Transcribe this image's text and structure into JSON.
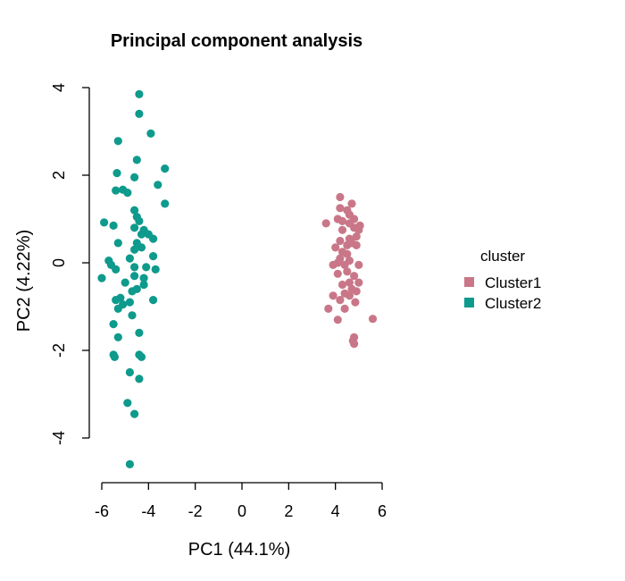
{
  "chart_data": {
    "type": "scatter",
    "title": "Principal component analysis",
    "xlabel": "PC1 (44.1%)",
    "ylabel": "PC2 (4.22%)",
    "xlim": [
      -6,
      6
    ],
    "ylim": [
      -4,
      4
    ],
    "xticks": [
      "-6",
      "-4",
      "-2",
      "0",
      "2",
      "4",
      "6"
    ],
    "yticks": [
      "-4",
      "-2",
      "0",
      "2",
      "4"
    ],
    "grid": false,
    "legend": {
      "title": "cluster",
      "position": "right",
      "entries": [
        {
          "label": "Cluster1",
          "color": "#c97788"
        },
        {
          "label": "Cluster2",
          "color": "#0e9a8c"
        }
      ]
    },
    "series": [
      {
        "name": "Cluster1",
        "color": "#c97788",
        "points": [
          [
            4.2,
            1.5
          ],
          [
            4.7,
            1.35
          ],
          [
            4.2,
            1.25
          ],
          [
            4.5,
            1.2
          ],
          [
            4.6,
            1.1
          ],
          [
            4.1,
            1.0
          ],
          [
            4.3,
            0.95
          ],
          [
            4.8,
            1.0
          ],
          [
            3.6,
            0.9
          ],
          [
            4.6,
            0.9
          ],
          [
            5.05,
            0.85
          ],
          [
            4.3,
            0.75
          ],
          [
            4.8,
            0.8
          ],
          [
            5.0,
            0.75
          ],
          [
            4.9,
            0.6
          ],
          [
            4.6,
            0.55
          ],
          [
            4.2,
            0.5
          ],
          [
            4.0,
            0.35
          ],
          [
            4.5,
            0.4
          ],
          [
            4.7,
            0.45
          ],
          [
            4.9,
            0.4
          ],
          [
            4.3,
            0.25
          ],
          [
            4.5,
            0.2
          ],
          [
            4.2,
            0.1
          ],
          [
            4.6,
            0.05
          ],
          [
            4.1,
            0.0
          ],
          [
            3.9,
            -0.05
          ],
          [
            4.4,
            -0.05
          ],
          [
            5.0,
            -0.05
          ],
          [
            4.1,
            -0.25
          ],
          [
            4.5,
            -0.2
          ],
          [
            4.8,
            -0.3
          ],
          [
            4.6,
            -0.45
          ],
          [
            4.3,
            -0.5
          ],
          [
            5.0,
            -0.45
          ],
          [
            4.7,
            -0.6
          ],
          [
            4.9,
            -0.65
          ],
          [
            3.9,
            -0.75
          ],
          [
            4.4,
            -0.7
          ],
          [
            4.6,
            -0.75
          ],
          [
            4.2,
            -0.85
          ],
          [
            4.85,
            -0.9
          ],
          [
            3.7,
            -1.05
          ],
          [
            4.4,
            -1.05
          ],
          [
            4.1,
            -1.3
          ],
          [
            5.6,
            -1.28
          ],
          [
            4.8,
            -1.7
          ],
          [
            4.75,
            -1.78
          ],
          [
            4.8,
            -1.85
          ]
        ]
      },
      {
        "name": "Cluster2",
        "color": "#0e9a8c",
        "points": [
          [
            -4.4,
            3.85
          ],
          [
            -4.4,
            3.4
          ],
          [
            -3.9,
            2.95
          ],
          [
            -5.3,
            2.78
          ],
          [
            -4.5,
            2.35
          ],
          [
            -3.3,
            2.15
          ],
          [
            -5.35,
            2.05
          ],
          [
            -4.6,
            1.95
          ],
          [
            -3.6,
            1.78
          ],
          [
            -5.1,
            1.67
          ],
          [
            -5.4,
            1.65
          ],
          [
            -4.9,
            1.6
          ],
          [
            -3.3,
            1.35
          ],
          [
            -4.6,
            1.2
          ],
          [
            -4.5,
            1.05
          ],
          [
            -4.4,
            0.95
          ],
          [
            -5.9,
            0.92
          ],
          [
            -5.5,
            0.85
          ],
          [
            -4.6,
            0.8
          ],
          [
            -4.2,
            0.75
          ],
          [
            -4.3,
            0.65
          ],
          [
            -4.0,
            0.65
          ],
          [
            -3.8,
            0.55
          ],
          [
            -4.5,
            0.45
          ],
          [
            -5.3,
            0.45
          ],
          [
            -4.3,
            0.35
          ],
          [
            -4.6,
            0.3
          ],
          [
            -3.8,
            0.15
          ],
          [
            -4.8,
            0.1
          ],
          [
            -5.7,
            0.05
          ],
          [
            -5.6,
            -0.05
          ],
          [
            -4.6,
            -0.1
          ],
          [
            -4.1,
            -0.1
          ],
          [
            -5.4,
            -0.15
          ],
          [
            -3.7,
            -0.15
          ],
          [
            -6.0,
            -0.35
          ],
          [
            -4.6,
            -0.3
          ],
          [
            -4.2,
            -0.35
          ],
          [
            -4.2,
            -0.5
          ],
          [
            -5.0,
            -0.45
          ],
          [
            -4.5,
            -0.6
          ],
          [
            -4.7,
            -0.65
          ],
          [
            -5.2,
            -0.8
          ],
          [
            -5.4,
            -0.85
          ],
          [
            -3.8,
            -0.85
          ],
          [
            -4.8,
            -0.9
          ],
          [
            -5.1,
            -0.95
          ],
          [
            -5.3,
            -1.05
          ],
          [
            -4.7,
            -1.2
          ],
          [
            -5.5,
            -1.4
          ],
          [
            -4.4,
            -1.6
          ],
          [
            -5.3,
            -1.7
          ],
          [
            -4.4,
            -2.1
          ],
          [
            -5.5,
            -2.1
          ],
          [
            -5.45,
            -2.15
          ],
          [
            -4.3,
            -2.15
          ],
          [
            -4.8,
            -2.5
          ],
          [
            -4.4,
            -2.65
          ],
          [
            -4.9,
            -3.2
          ],
          [
            -4.6,
            -3.45
          ],
          [
            -4.8,
            -4.6
          ]
        ]
      }
    ]
  }
}
